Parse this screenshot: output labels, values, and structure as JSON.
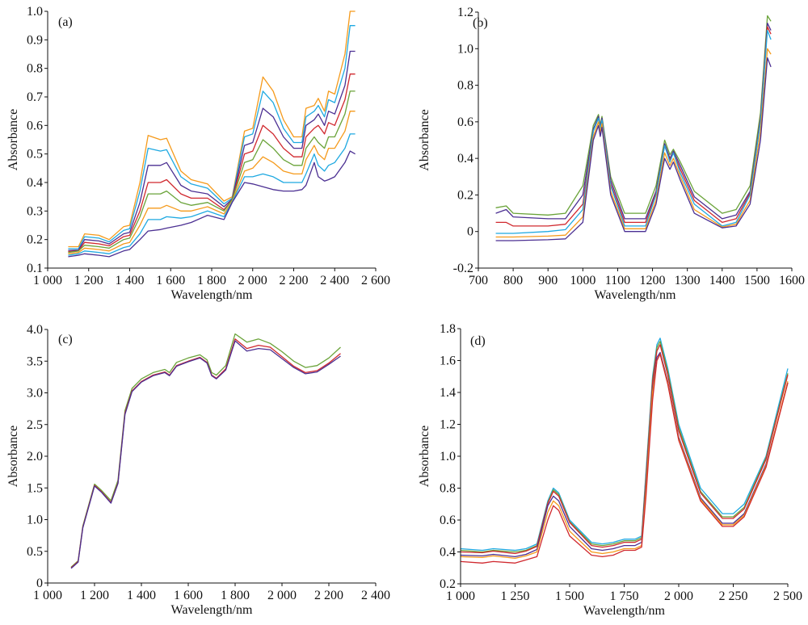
{
  "chart_data": [
    {
      "type": "line",
      "panel_label": "(a)",
      "xlabel": "Wavelength/nm",
      "ylabel": "Absorbance",
      "xlim": [
        1000,
        2600
      ],
      "ylim": [
        0.1,
        1.0
      ],
      "xticks": [
        1000,
        1200,
        1400,
        1600,
        1800,
        2000,
        2200,
        2400,
        2600
      ],
      "xtick_labels": [
        "1 000",
        "1 200",
        "1 400",
        "1 600",
        "1 800",
        "2 000",
        "2 200",
        "2 400",
        "2 600"
      ],
      "yticks": [
        0.1,
        0.2,
        0.3,
        0.4,
        0.5,
        0.6,
        0.7,
        0.8,
        0.9,
        1.0
      ],
      "ytick_labels": [
        "0.1",
        "0.2",
        "0.3",
        "0.4",
        "0.5",
        "0.6",
        "0.7",
        "0.8",
        "0.9",
        "1.0"
      ],
      "grid": false,
      "x": [
        1100,
        1150,
        1180,
        1250,
        1300,
        1370,
        1400,
        1450,
        1490,
        1550,
        1580,
        1650,
        1700,
        1780,
        1860,
        1900,
        1960,
        2000,
        2050,
        2100,
        2150,
        2200,
        2240,
        2260,
        2300,
        2320,
        2350,
        2370,
        2400,
        2450,
        2475,
        2500
      ],
      "series": [
        {
          "color": "#f59a1b",
          "values": [
            0.175,
            0.175,
            0.22,
            0.215,
            0.2,
            0.245,
            0.25,
            0.4,
            0.565,
            0.55,
            0.555,
            0.44,
            0.41,
            0.395,
            0.335,
            0.35,
            0.58,
            0.59,
            0.77,
            0.72,
            0.62,
            0.56,
            0.56,
            0.66,
            0.67,
            0.695,
            0.65,
            0.72,
            0.71,
            0.85,
            1.0,
            1.0
          ]
        },
        {
          "color": "#1fa9e1",
          "values": [
            0.168,
            0.168,
            0.21,
            0.205,
            0.192,
            0.232,
            0.238,
            0.37,
            0.52,
            0.51,
            0.515,
            0.42,
            0.395,
            0.38,
            0.325,
            0.345,
            0.56,
            0.57,
            0.72,
            0.68,
            0.59,
            0.54,
            0.54,
            0.63,
            0.65,
            0.67,
            0.63,
            0.69,
            0.68,
            0.8,
            0.95,
            0.95
          ]
        },
        {
          "color": "#4b2f92",
          "values": [
            0.162,
            0.163,
            0.2,
            0.195,
            0.185,
            0.22,
            0.225,
            0.33,
            0.46,
            0.46,
            0.47,
            0.39,
            0.37,
            0.36,
            0.315,
            0.342,
            0.53,
            0.54,
            0.66,
            0.63,
            0.56,
            0.52,
            0.52,
            0.6,
            0.62,
            0.64,
            0.6,
            0.65,
            0.64,
            0.74,
            0.86,
            0.86
          ]
        },
        {
          "color": "#d0282e",
          "values": [
            0.158,
            0.16,
            0.19,
            0.185,
            0.178,
            0.21,
            0.215,
            0.3,
            0.4,
            0.4,
            0.41,
            0.36,
            0.345,
            0.345,
            0.305,
            0.34,
            0.5,
            0.51,
            0.6,
            0.57,
            0.52,
            0.49,
            0.49,
            0.56,
            0.59,
            0.6,
            0.57,
            0.61,
            0.6,
            0.69,
            0.78,
            0.78
          ]
        },
        {
          "color": "#6aa339",
          "values": [
            0.155,
            0.16,
            0.18,
            0.175,
            0.17,
            0.2,
            0.205,
            0.28,
            0.36,
            0.36,
            0.37,
            0.33,
            0.32,
            0.33,
            0.3,
            0.34,
            0.47,
            0.48,
            0.55,
            0.52,
            0.48,
            0.46,
            0.46,
            0.52,
            0.56,
            0.54,
            0.52,
            0.56,
            0.56,
            0.64,
            0.72,
            0.72
          ]
        },
        {
          "color": "#f59a1b",
          "values": [
            0.15,
            0.155,
            0.17,
            0.165,
            0.16,
            0.185,
            0.19,
            0.25,
            0.31,
            0.31,
            0.32,
            0.3,
            0.3,
            0.315,
            0.29,
            0.335,
            0.44,
            0.45,
            0.49,
            0.47,
            0.44,
            0.43,
            0.43,
            0.48,
            0.53,
            0.5,
            0.48,
            0.52,
            0.52,
            0.58,
            0.65,
            0.65
          ]
        },
        {
          "color": "#1fa9e1",
          "values": [
            0.145,
            0.15,
            0.16,
            0.155,
            0.15,
            0.172,
            0.177,
            0.22,
            0.27,
            0.27,
            0.28,
            0.275,
            0.28,
            0.3,
            0.28,
            0.332,
            0.42,
            0.42,
            0.43,
            0.42,
            0.4,
            0.4,
            0.4,
            0.43,
            0.5,
            0.46,
            0.44,
            0.46,
            0.47,
            0.52,
            0.57,
            0.57
          ]
        },
        {
          "color": "#4b2f92",
          "values": [
            0.14,
            0.145,
            0.15,
            0.145,
            0.14,
            0.16,
            0.165,
            0.2,
            0.23,
            0.235,
            0.24,
            0.25,
            0.26,
            0.285,
            0.27,
            0.33,
            0.4,
            0.395,
            0.385,
            0.375,
            0.37,
            0.37,
            0.375,
            0.39,
            0.47,
            0.42,
            0.405,
            0.41,
            0.42,
            0.47,
            0.51,
            0.5
          ]
        }
      ]
    },
    {
      "type": "line",
      "panel_label": "(b)",
      "xlabel": "Wavelength/nm",
      "ylabel": "Absorbance",
      "xlim": [
        700,
        1600
      ],
      "ylim": [
        -0.2,
        1.2
      ],
      "xticks": [
        700,
        800,
        900,
        1000,
        1100,
        1200,
        1300,
        1400,
        1500,
        1600
      ],
      "xtick_labels": [
        "700",
        "800",
        "900",
        "1000",
        "1100",
        "1200",
        "1300",
        "1400",
        "1500",
        "1600"
      ],
      "yticks": [
        -0.2,
        0,
        0.2,
        0.4,
        0.6,
        0.8,
        1.0,
        1.2
      ],
      "ytick_labels": [
        "-0.2",
        "0",
        "0.2",
        "0.4",
        "0.6",
        "0.8",
        "1.0",
        "1.2"
      ],
      "grid": false,
      "x": [
        750,
        780,
        800,
        900,
        950,
        1000,
        1030,
        1045,
        1050,
        1055,
        1080,
        1120,
        1180,
        1210,
        1235,
        1250,
        1260,
        1280,
        1320,
        1400,
        1440,
        1480,
        1510,
        1530,
        1540
      ],
      "series": [
        {
          "color": "#6aa339",
          "values": [
            0.13,
            0.14,
            0.1,
            0.09,
            0.1,
            0.25,
            0.58,
            0.64,
            0.58,
            0.63,
            0.3,
            0.1,
            0.1,
            0.25,
            0.5,
            0.42,
            0.45,
            0.38,
            0.22,
            0.1,
            0.12,
            0.25,
            0.65,
            1.18,
            1.15
          ]
        },
        {
          "color": "#4b2f92",
          "values": [
            0.1,
            0.12,
            0.08,
            0.07,
            0.07,
            0.2,
            0.56,
            0.63,
            0.57,
            0.62,
            0.28,
            0.07,
            0.07,
            0.22,
            0.48,
            0.4,
            0.44,
            0.36,
            0.19,
            0.07,
            0.09,
            0.22,
            0.62,
            1.14,
            1.1
          ]
        },
        {
          "color": "#d0282e",
          "values": [
            0.05,
            0.05,
            0.03,
            0.03,
            0.04,
            0.15,
            0.55,
            0.62,
            0.56,
            0.61,
            0.26,
            0.05,
            0.05,
            0.21,
            0.47,
            0.39,
            0.43,
            0.34,
            0.17,
            0.05,
            0.07,
            0.21,
            0.61,
            1.12,
            1.08
          ]
        },
        {
          "color": "#1fa9e1",
          "values": [
            -0.01,
            -0.01,
            -0.01,
            0,
            0.01,
            0.12,
            0.55,
            0.62,
            0.56,
            0.61,
            0.25,
            0.03,
            0.03,
            0.2,
            0.47,
            0.38,
            0.43,
            0.32,
            0.15,
            0.03,
            0.05,
            0.2,
            0.6,
            1.1,
            1.05
          ]
        },
        {
          "color": "#f59a1b",
          "values": [
            -0.03,
            -0.03,
            -0.03,
            -0.025,
            -0.02,
            0.08,
            0.52,
            0.6,
            0.54,
            0.59,
            0.22,
            0.015,
            0.015,
            0.17,
            0.43,
            0.36,
            0.4,
            0.3,
            0.12,
            0.025,
            0.04,
            0.17,
            0.55,
            1.0,
            0.97
          ]
        },
        {
          "color": "#4b2f92",
          "values": [
            -0.05,
            -0.05,
            -0.05,
            -0.045,
            -0.04,
            0.05,
            0.5,
            0.58,
            0.52,
            0.57,
            0.2,
            0.0,
            0.0,
            0.15,
            0.4,
            0.34,
            0.38,
            0.28,
            0.1,
            0.02,
            0.03,
            0.15,
            0.5,
            0.95,
            0.9
          ]
        }
      ]
    },
    {
      "type": "line",
      "panel_label": "(c)",
      "xlabel": "Wavelength/nm",
      "ylabel": "Absorbance",
      "xlim": [
        1000,
        2400
      ],
      "ylim": [
        0,
        4.0
      ],
      "xticks": [
        1000,
        1200,
        1400,
        1600,
        1800,
        2000,
        2200,
        2400
      ],
      "xtick_labels": [
        "1 000",
        "1 200",
        "1 400",
        "1 600",
        "1 800",
        "2 000",
        "2 200",
        "2 400"
      ],
      "yticks": [
        0,
        0.5,
        1.0,
        1.5,
        2.0,
        2.5,
        3.0,
        3.5,
        4.0
      ],
      "ytick_labels": [
        "0",
        "0.5",
        "1.0",
        "1.5",
        "2.0",
        "2.5",
        "3.0",
        "3.5",
        "4.0"
      ],
      "grid": false,
      "x": [
        1100,
        1130,
        1150,
        1200,
        1230,
        1270,
        1300,
        1330,
        1360,
        1400,
        1450,
        1500,
        1520,
        1550,
        1600,
        1650,
        1680,
        1700,
        1720,
        1760,
        1800,
        1850,
        1900,
        1950,
        2000,
        2050,
        2100,
        2150,
        2200,
        2250
      ],
      "series": [
        {
          "color": "#6aa339",
          "values": [
            0.25,
            0.35,
            0.9,
            1.56,
            1.46,
            1.3,
            1.62,
            2.72,
            3.07,
            3.22,
            3.32,
            3.37,
            3.32,
            3.48,
            3.55,
            3.6,
            3.52,
            3.32,
            3.28,
            3.43,
            3.93,
            3.8,
            3.85,
            3.78,
            3.65,
            3.5,
            3.4,
            3.43,
            3.55,
            3.72
          ]
        },
        {
          "color": "#d0282e",
          "values": [
            0.24,
            0.34,
            0.88,
            1.54,
            1.44,
            1.27,
            1.58,
            2.68,
            3.03,
            3.18,
            3.28,
            3.33,
            3.28,
            3.43,
            3.5,
            3.56,
            3.48,
            3.28,
            3.23,
            3.38,
            3.85,
            3.7,
            3.75,
            3.72,
            3.57,
            3.42,
            3.32,
            3.35,
            3.47,
            3.62
          ]
        },
        {
          "color": "#4b2f92",
          "values": [
            0.23,
            0.33,
            0.87,
            1.53,
            1.43,
            1.26,
            1.57,
            2.66,
            3.02,
            3.17,
            3.27,
            3.32,
            3.27,
            3.42,
            3.49,
            3.55,
            3.47,
            3.27,
            3.22,
            3.36,
            3.82,
            3.66,
            3.7,
            3.68,
            3.54,
            3.4,
            3.3,
            3.33,
            3.45,
            3.58
          ]
        }
      ]
    },
    {
      "type": "line",
      "panel_label": "(d)",
      "xlabel": "Wavelength/nm",
      "ylabel": "Absorbance",
      "xlim": [
        1000,
        2500
      ],
      "ylim": [
        0.2,
        1.8
      ],
      "xticks": [
        1000,
        1250,
        1500,
        1750,
        2000,
        2250,
        2500
      ],
      "xtick_labels": [
        "1 000",
        "1 250",
        "1 500",
        "1 750",
        "2 000",
        "2 250",
        "2 500"
      ],
      "yticks": [
        0.2,
        0.4,
        0.6,
        0.8,
        1.0,
        1.2,
        1.4,
        1.6,
        1.8
      ],
      "ytick_labels": [
        "0.2",
        "0.4",
        "0.6",
        "0.8",
        "1.0",
        "1.2",
        "1.4",
        "1.6",
        "1.8"
      ],
      "grid": false,
      "x": [
        1000,
        1100,
        1150,
        1250,
        1300,
        1350,
        1400,
        1425,
        1450,
        1500,
        1600,
        1650,
        1700,
        1750,
        1800,
        1830,
        1850,
        1880,
        1900,
        1915,
        1950,
        2000,
        2100,
        2200,
        2250,
        2300,
        2400,
        2500
      ],
      "series": [
        {
          "color": "#1fa9e1",
          "values": [
            0.42,
            0.41,
            0.42,
            0.41,
            0.42,
            0.45,
            0.72,
            0.8,
            0.77,
            0.6,
            0.46,
            0.45,
            0.46,
            0.48,
            0.48,
            0.5,
            0.9,
            1.5,
            1.7,
            1.74,
            1.55,
            1.2,
            0.8,
            0.64,
            0.64,
            0.7,
            1.0,
            1.55
          ]
        },
        {
          "color": "#6aa339",
          "values": [
            0.41,
            0.4,
            0.41,
            0.4,
            0.41,
            0.44,
            0.71,
            0.79,
            0.76,
            0.59,
            0.45,
            0.44,
            0.45,
            0.47,
            0.47,
            0.49,
            0.88,
            1.48,
            1.68,
            1.72,
            1.53,
            1.18,
            0.78,
            0.62,
            0.62,
            0.68,
            0.99,
            1.52
          ]
        },
        {
          "color": "#d0282e",
          "values": [
            0.4,
            0.395,
            0.405,
            0.39,
            0.405,
            0.435,
            0.705,
            0.78,
            0.75,
            0.585,
            0.44,
            0.43,
            0.44,
            0.46,
            0.46,
            0.48,
            0.86,
            1.46,
            1.66,
            1.7,
            1.51,
            1.16,
            0.77,
            0.61,
            0.61,
            0.67,
            0.98,
            1.51
          ]
        },
        {
          "color": "#4b2f92",
          "values": [
            0.38,
            0.375,
            0.385,
            0.37,
            0.385,
            0.415,
            0.69,
            0.75,
            0.72,
            0.56,
            0.42,
            0.41,
            0.42,
            0.44,
            0.44,
            0.46,
            0.84,
            1.42,
            1.62,
            1.65,
            1.47,
            1.12,
            0.74,
            0.58,
            0.58,
            0.64,
            0.95,
            1.46
          ]
        },
        {
          "color": "#f59a1b",
          "values": [
            0.37,
            0.365,
            0.375,
            0.36,
            0.375,
            0.4,
            0.65,
            0.72,
            0.69,
            0.53,
            0.4,
            0.39,
            0.4,
            0.42,
            0.42,
            0.44,
            0.8,
            1.4,
            1.6,
            1.64,
            1.46,
            1.11,
            0.73,
            0.57,
            0.57,
            0.63,
            0.94,
            1.47
          ]
        },
        {
          "color": "#d0282e",
          "values": [
            0.34,
            0.33,
            0.34,
            0.33,
            0.35,
            0.37,
            0.6,
            0.69,
            0.66,
            0.5,
            0.38,
            0.37,
            0.38,
            0.41,
            0.41,
            0.43,
            0.75,
            1.35,
            1.6,
            1.64,
            1.45,
            1.1,
            0.72,
            0.56,
            0.56,
            0.62,
            0.93,
            1.46
          ]
        }
      ]
    }
  ]
}
